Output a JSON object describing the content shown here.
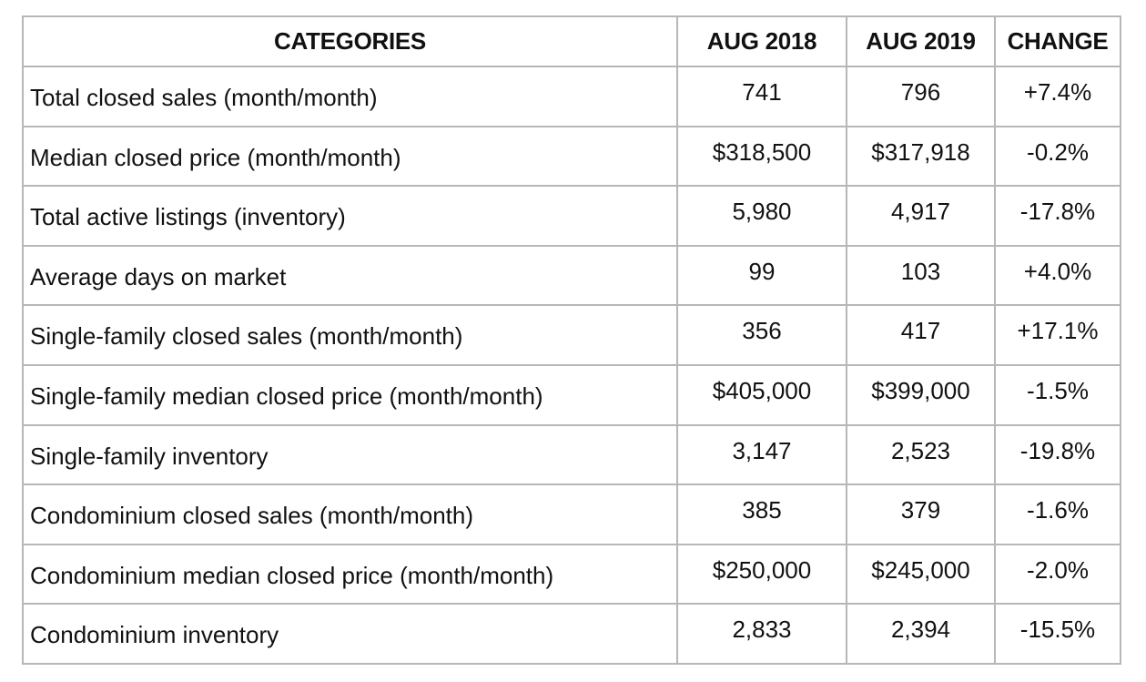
{
  "headers": {
    "categories": "CATEGORIES",
    "aug2018": "AUG 2018",
    "aug2019": "AUG 2019",
    "change": "CHANGE"
  },
  "rows": [
    {
      "category": "Total closed sales (month/month)",
      "aug2018": "741",
      "aug2019": "796",
      "change": "+7.4%"
    },
    {
      "category": "Median closed price (month/month)",
      "aug2018": "$318,500",
      "aug2019": "$317,918",
      "change": "-0.2%"
    },
    {
      "category": "Total active listings (inventory)",
      "aug2018": "5,980",
      "aug2019": "4,917",
      "change": "-17.8%"
    },
    {
      "category": "Average days on market",
      "aug2018": "99",
      "aug2019": "103",
      "change": "+4.0%"
    },
    {
      "category": "Single-family closed sales (month/month)",
      "aug2018": "356",
      "aug2019": "417",
      "change": "+17.1%"
    },
    {
      "category": "Single-family median closed price (month/month)",
      "aug2018": "$405,000",
      "aug2019": "$399,000",
      "change": "-1.5%"
    },
    {
      "category": "Single-family inventory",
      "aug2018": "3,147",
      "aug2019": "2,523",
      "change": "-19.8%"
    },
    {
      "category": "Condominium closed sales (month/month)",
      "aug2018": "385",
      "aug2019": "379",
      "change": "-1.6%"
    },
    {
      "category": "Condominium median closed price (month/month)",
      "aug2018": "$250,000",
      "aug2019": "$245,000",
      "change": "-2.0%"
    },
    {
      "category": "Condominium inventory",
      "aug2018": "2,833",
      "aug2019": "2,394",
      "change": "-15.5%"
    }
  ]
}
